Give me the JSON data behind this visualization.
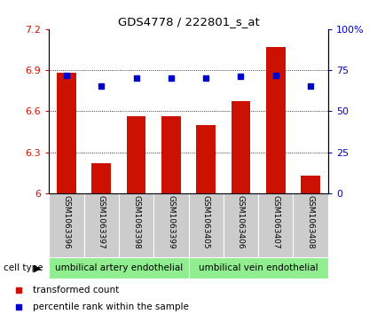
{
  "title": "GDS4778 / 222801_s_at",
  "samples": [
    "GSM1063396",
    "GSM1063397",
    "GSM1063398",
    "GSM1063399",
    "GSM1063405",
    "GSM1063406",
    "GSM1063407",
    "GSM1063408"
  ],
  "bar_values": [
    6.88,
    6.22,
    6.56,
    6.56,
    6.5,
    6.67,
    7.07,
    6.13
  ],
  "dot_values": [
    72,
    65,
    70,
    70,
    70,
    71,
    72,
    65
  ],
  "bar_color": "#cc1100",
  "dot_color": "#0000cc",
  "ylim_left": [
    6.0,
    7.2
  ],
  "ylim_right": [
    0,
    100
  ],
  "yticks_left": [
    6.0,
    6.3,
    6.6,
    6.9,
    7.2
  ],
  "ytick_labels_left": [
    "6",
    "6.3",
    "6.6",
    "6.9",
    "7.2"
  ],
  "yticks_right": [
    0,
    25,
    50,
    75,
    100
  ],
  "ytick_labels_right": [
    "0",
    "25",
    "50",
    "75",
    "100%"
  ],
  "grid_values": [
    6.3,
    6.6,
    6.9
  ],
  "cell_type_labels": [
    "umbilical artery endothelial",
    "umbilical vein endothelial"
  ],
  "cell_type_color": "#90EE90",
  "legend_items": [
    {
      "label": "transformed count",
      "color": "#cc1100"
    },
    {
      "label": "percentile rank within the sample",
      "color": "#0000cc"
    }
  ],
  "xticklabel_area_color": "#cccccc",
  "cell_type_arrow_text": "cell type",
  "bg_color": "#ffffff"
}
